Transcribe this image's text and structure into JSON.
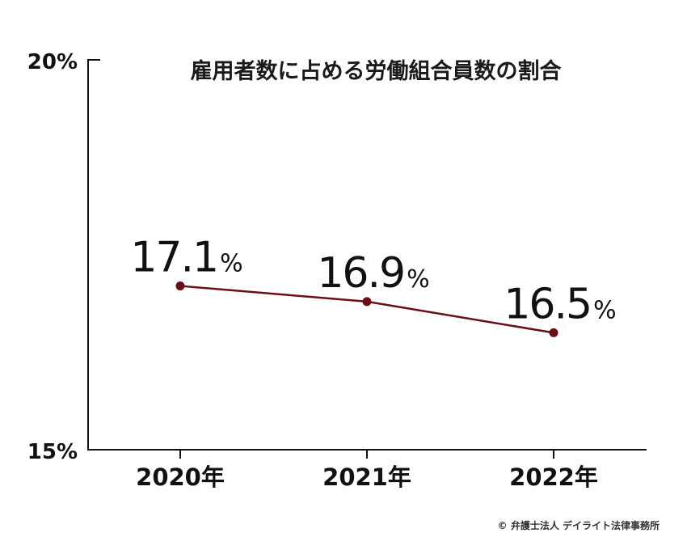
{
  "chart_data": {
    "type": "line",
    "title": "雇用者数に占める労働組合員数の割合",
    "categories": [
      "2020年",
      "2021年",
      "2022年"
    ],
    "series": [
      {
        "values": [
          17.1,
          16.9,
          16.5
        ]
      }
    ],
    "value_labels": [
      "17.1",
      "16.9",
      "16.5"
    ],
    "unit": "%",
    "ylim": [
      15,
      20
    ],
    "yticks": [
      "20%",
      "15%"
    ],
    "grid": false,
    "line_color": "#6b0f16"
  },
  "credit": "© 弁護士法人 デイライト法律事務所"
}
